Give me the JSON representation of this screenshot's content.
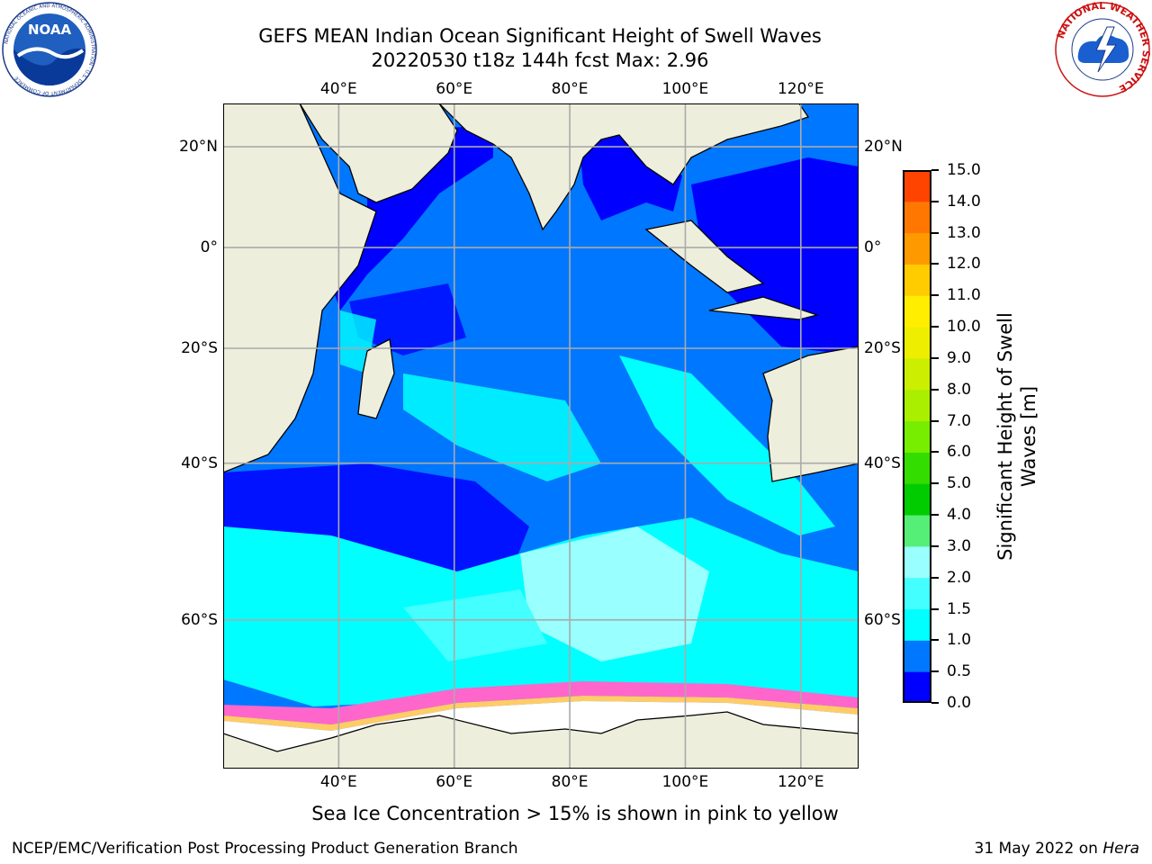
{
  "title": {
    "line1": "GEFS MEAN Indian Ocean Significant Height of Swell Waves",
    "line2": "20220530 t18z 144h fcst   Max: 2.96"
  },
  "map": {
    "lon_ticks": [
      "40°E",
      "60°E",
      "80°E",
      "100°E",
      "120°E"
    ],
    "lat_ticks": [
      "20°N",
      "0°",
      "20°S",
      "40°S",
      "60°S"
    ],
    "lon_values": [
      40,
      60,
      80,
      100,
      120
    ],
    "lat_values": [
      20,
      0,
      -20,
      -40,
      -60
    ],
    "extent": {
      "lon_min": 20,
      "lon_max": 130,
      "lat_min": -72,
      "lat_max": 28
    },
    "colors": {
      "land": "#eeeedd",
      "sea_ice": "#ffffff",
      "grid": "#aaaaaa",
      "coast": "#000000"
    }
  },
  "colorbar": {
    "label": "Significant Height of Swell Waves [m]",
    "ticks": [
      "0.0",
      "0.5",
      "1.0",
      "1.5",
      "2.0",
      "3.0",
      "4.0",
      "5.0",
      "6.0",
      "7.0",
      "8.0",
      "9.0",
      "10.0",
      "11.0",
      "12.0",
      "13.0",
      "14.0",
      "15.0"
    ],
    "colors": [
      "#0000ff",
      "#0077ff",
      "#00ffff",
      "#44ffff",
      "#99ffff",
      "#55ee77",
      "#00cc00",
      "#33dd00",
      "#77ee00",
      "#aaee00",
      "#ccee00",
      "#eeee00",
      "#ffee00",
      "#ffcc00",
      "#ff9900",
      "#ff7700",
      "#ff4400"
    ]
  },
  "annotation": "Sea Ice Concentration > 15% is shown in pink to yellow",
  "footer": {
    "left": "NCEP/EMC/Verification Post Processing Product Generation Branch",
    "right_prefix": "31 May 2022 on ",
    "right_host": "Hera"
  },
  "logos": {
    "noaa_text": "NOAA",
    "noaa_ring": "NATIONAL OCEANIC AND ATMOSPHERIC ADMINISTRATION · U.S. DEPARTMENT OF COMMERCE",
    "nws_ring": "NATIONAL WEATHER SERVICE"
  }
}
